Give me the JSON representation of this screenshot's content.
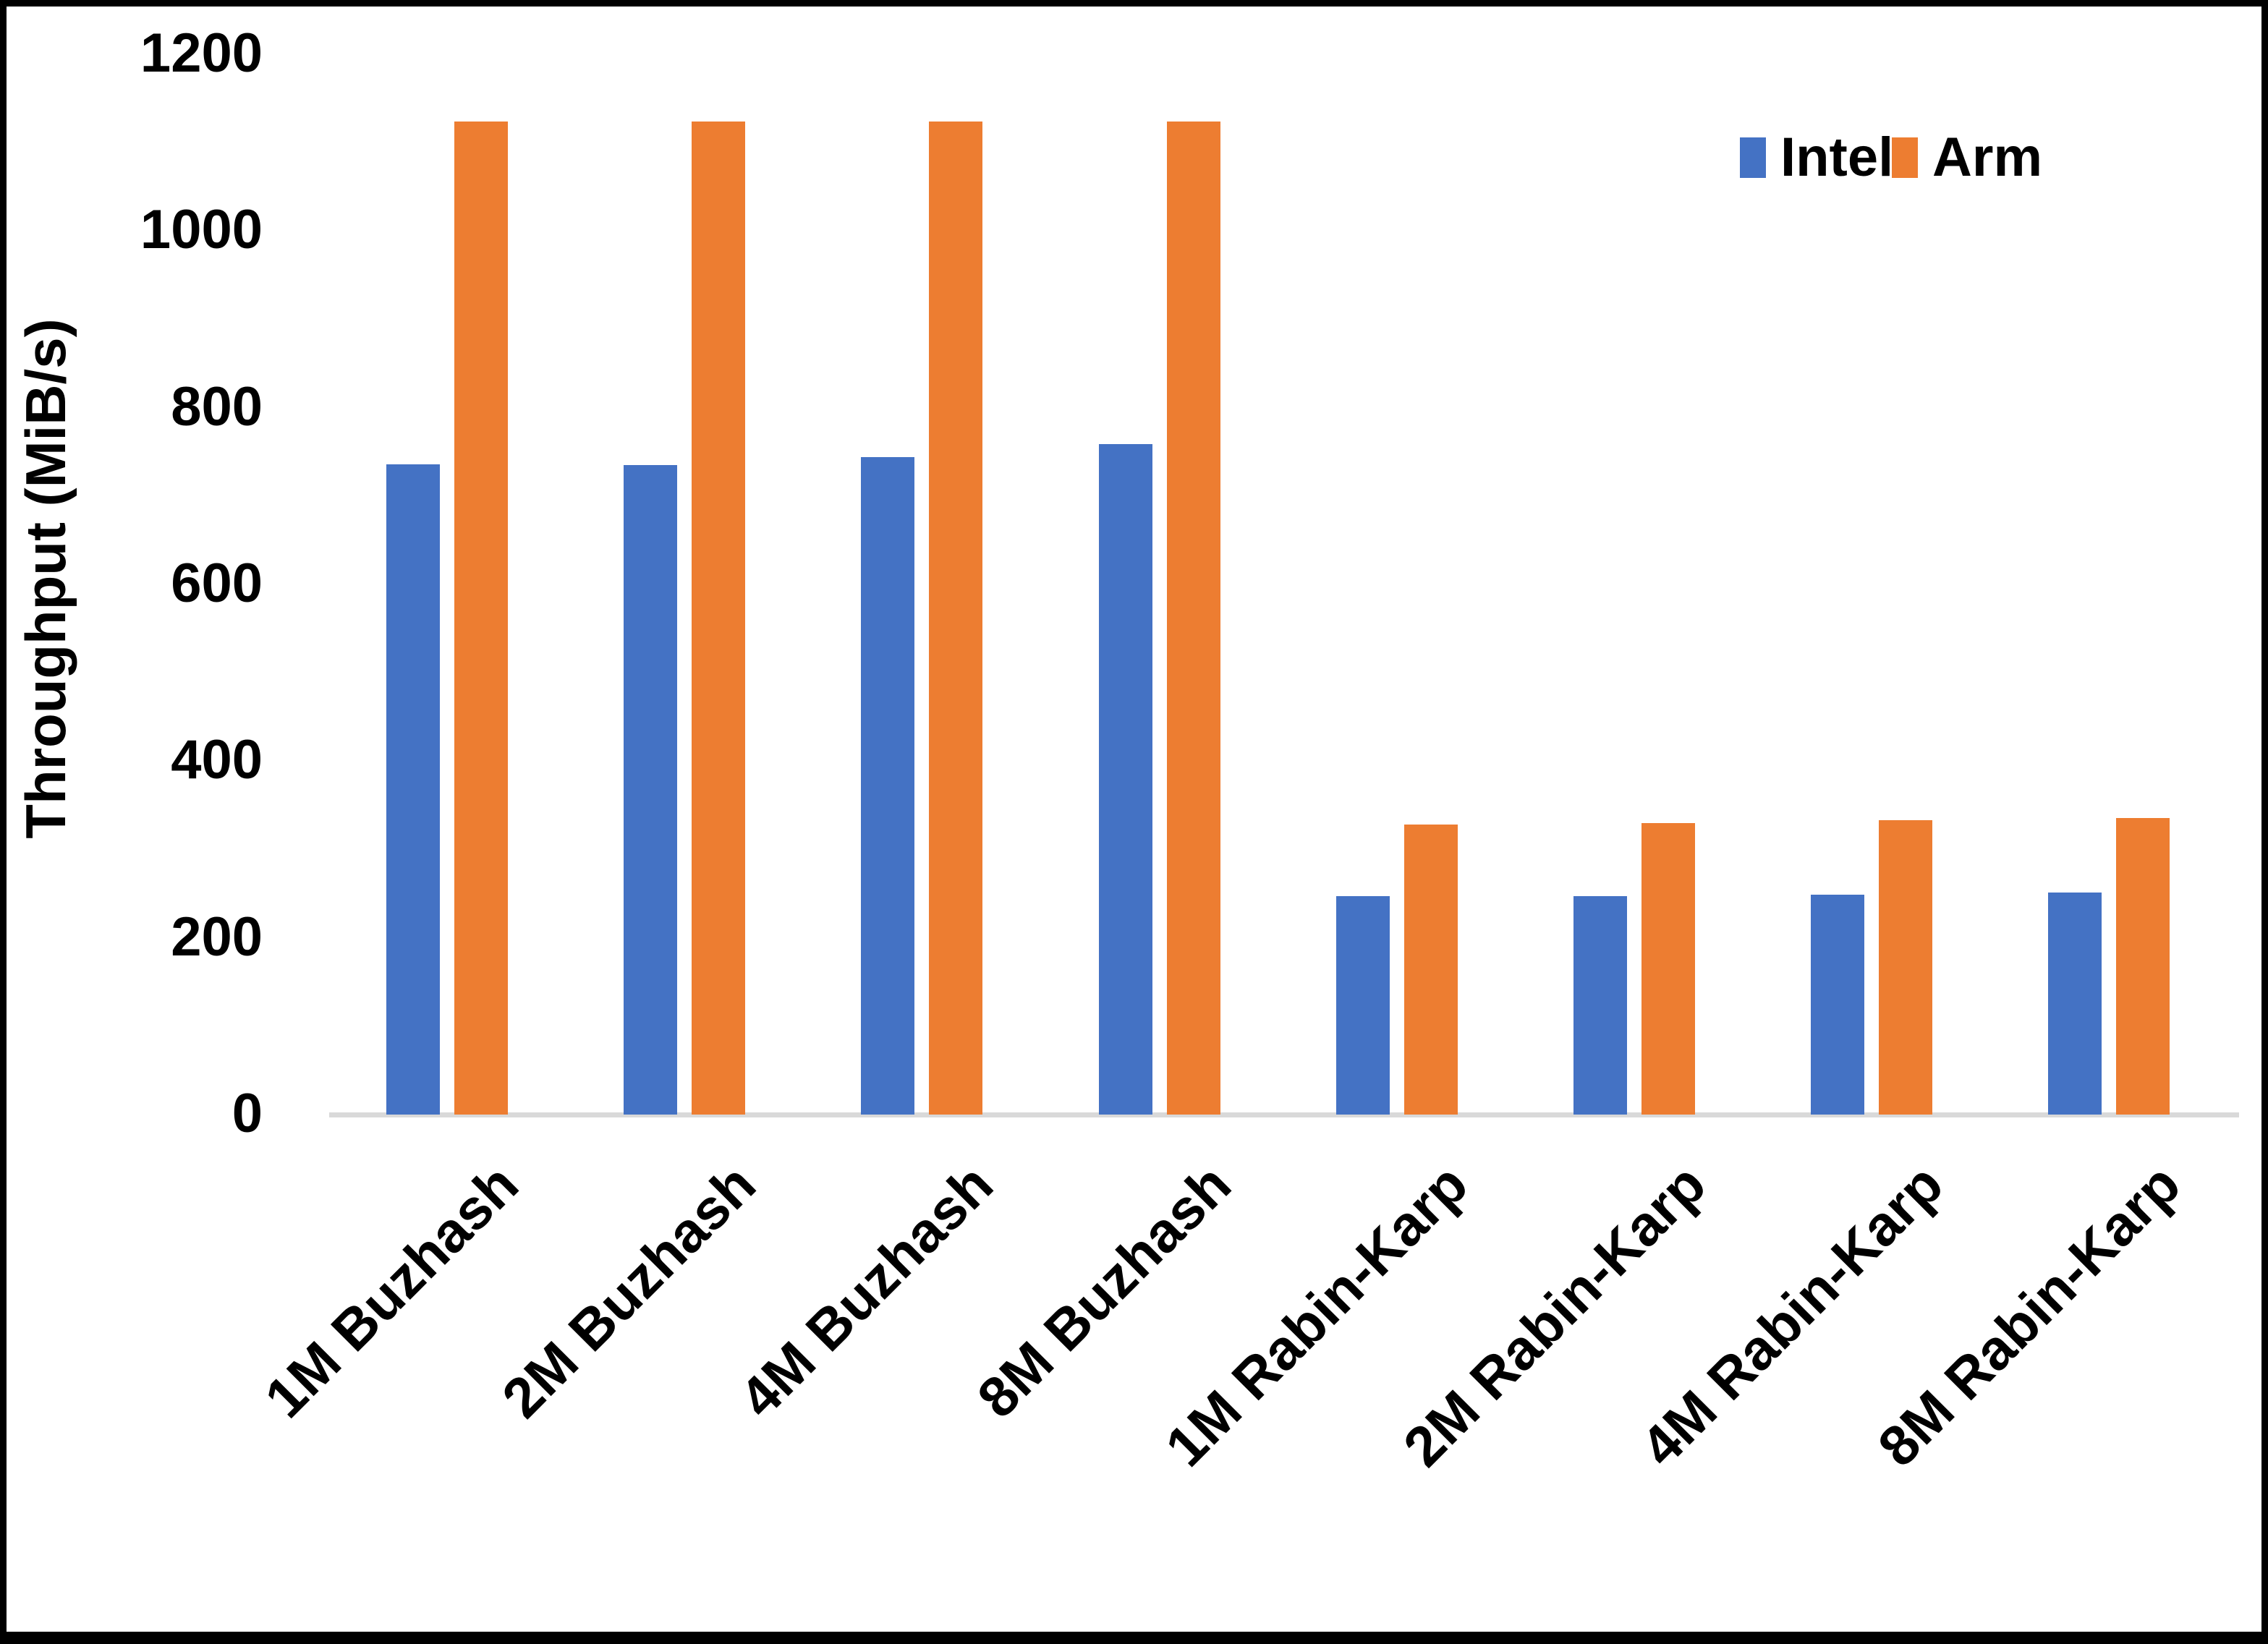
{
  "chart_data": {
    "type": "bar",
    "title": "",
    "categories": [
      "1M Buzhash",
      "2M Buzhash",
      "4M Buzhash",
      "8M Buzhash",
      "1M Rabin-Karp",
      "2M Rabin-Karp",
      "4M Rabin-Karp",
      "8M Rabin-Karp"
    ],
    "series": [
      {
        "name": "Intel",
        "color": "#4472C4",
        "values": [
          736,
          735,
          744,
          759,
          247,
          247,
          249,
          251
        ]
      },
      {
        "name": "Arm",
        "color": "#ED7D31",
        "values": [
          1124,
          1124,
          1124,
          1124,
          328,
          330,
          333,
          336
        ]
      }
    ],
    "xlabel": "",
    "ylabel": "Throughput (MiB/s)",
    "ylim": [
      0,
      1200
    ],
    "y_ticks": [
      "0",
      "200",
      "400",
      "600",
      "800",
      "1000",
      "1200"
    ],
    "grid": false,
    "legend_position": "top-right"
  },
  "legend": {
    "items": [
      {
        "label": "Intel",
        "color": "#4472C4"
      },
      {
        "label": "Arm",
        "color": "#ED7D31"
      }
    ]
  },
  "colors": {
    "background": "#FFFFFF",
    "axis_line": "#D9D9D9",
    "frame": "#000000",
    "text": "#000000"
  }
}
